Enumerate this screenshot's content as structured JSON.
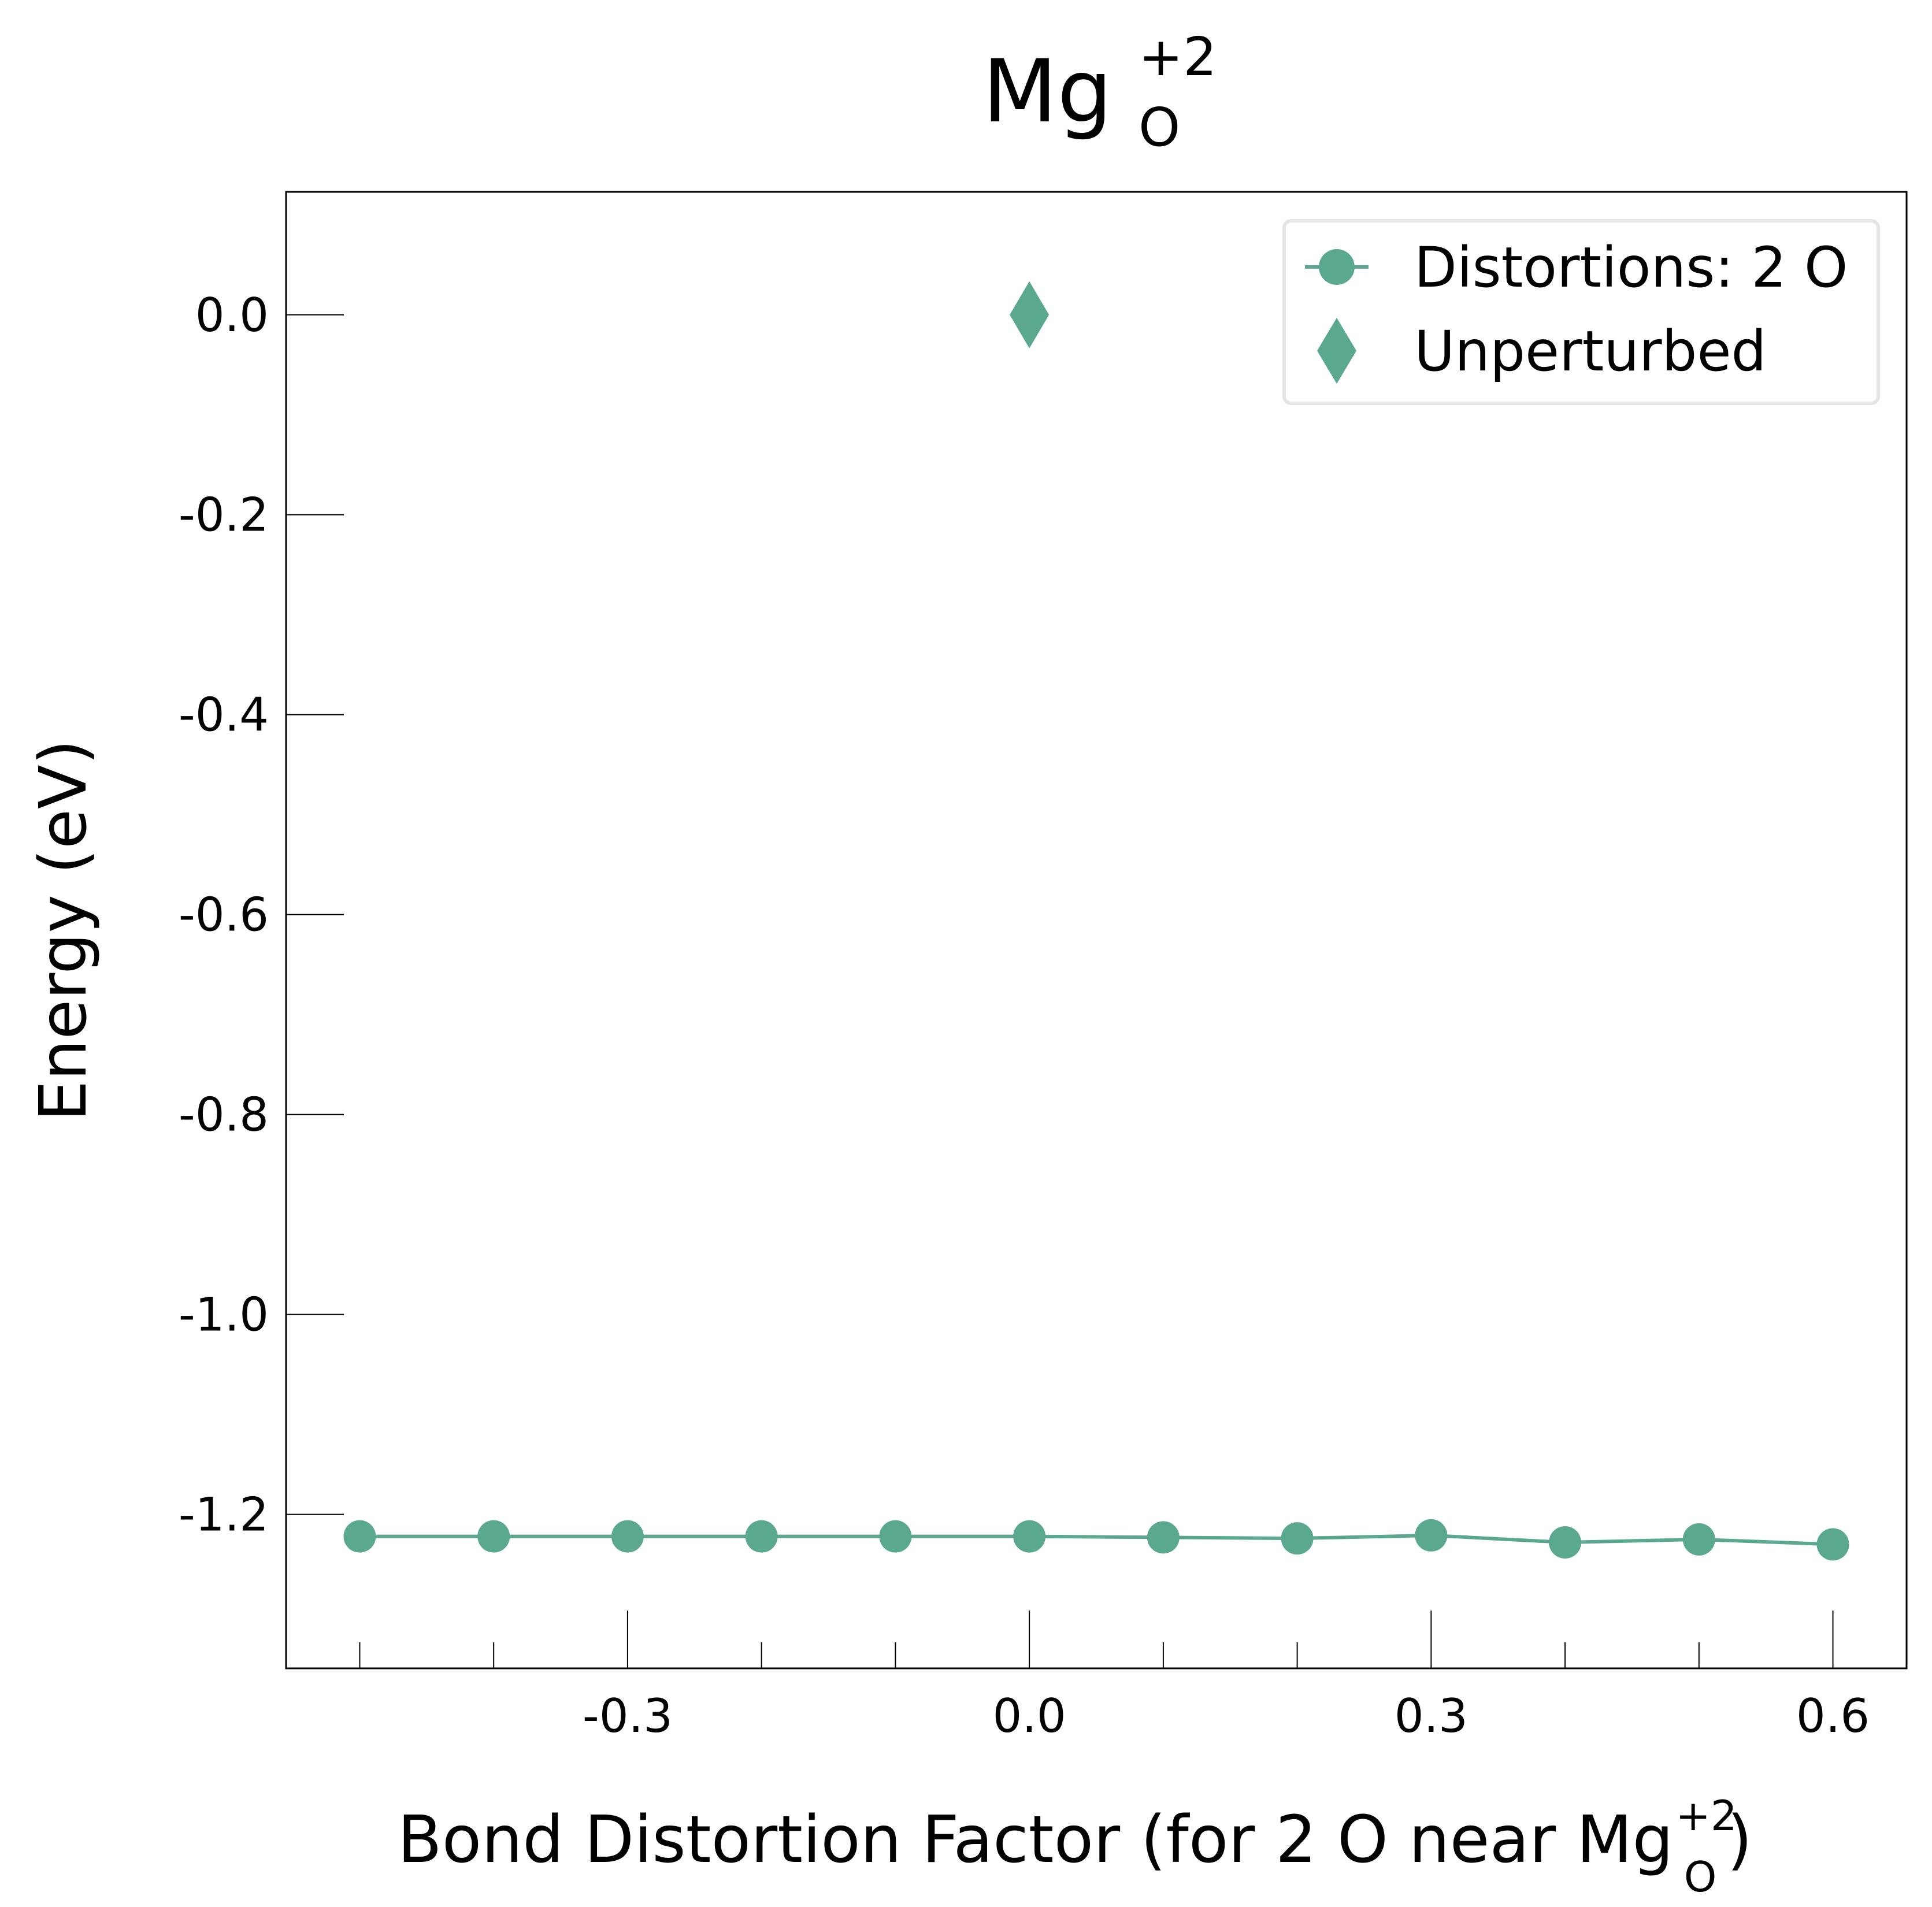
{
  "chart_data": {
    "type": "line",
    "title": {
      "base": "Mg",
      "sub": "O",
      "sup": "+2"
    },
    "xlabel": {
      "prefix": "Bond Distortion Factor (for 2 O near Mg",
      "sub": "O",
      "sup": "+2",
      "suffix": ")"
    },
    "ylabel": "Energy (eV)",
    "xlim": [
      -0.555,
      0.655
    ],
    "ylim": [
      -1.354,
      0.123
    ],
    "x_ticks": [
      -0.3,
      0.0,
      0.3,
      0.6
    ],
    "x_tick_labels": [
      "-0.3",
      "0.0",
      "0.3",
      "0.6"
    ],
    "x_minor_ticks": [
      -0.5,
      -0.4,
      -0.2,
      -0.1,
      0.1,
      0.2,
      0.4,
      0.5
    ],
    "y_ticks": [
      0.0,
      -0.2,
      -0.4,
      -0.6,
      -0.8,
      -1.0,
      -1.2
    ],
    "y_tick_labels": [
      "0.0",
      "-0.2",
      "-0.4",
      "-0.6",
      "-0.8",
      "-1.0",
      "-1.2"
    ],
    "grid": false,
    "legend_position": "top-right",
    "color": "#5aa88e",
    "series": [
      {
        "name": "Distortions: 2 O",
        "marker": "circle",
        "line": true,
        "x": [
          -0.5,
          -0.4,
          -0.3,
          -0.2,
          -0.1,
          0.0,
          0.1,
          0.2,
          0.3,
          0.4,
          0.5,
          0.6
        ],
        "y": [
          -1.222,
          -1.222,
          -1.222,
          -1.222,
          -1.222,
          -1.222,
          -1.223,
          -1.224,
          -1.221,
          -1.228,
          -1.225,
          -1.23
        ]
      },
      {
        "name": "Unperturbed",
        "marker": "diamond",
        "line": false,
        "x": [
          0.0
        ],
        "y": [
          0.0
        ]
      }
    ]
  }
}
